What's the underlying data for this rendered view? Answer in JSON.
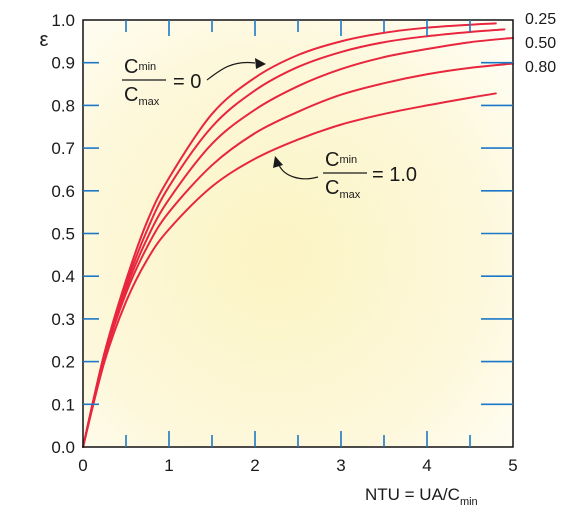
{
  "chart_data": {
    "type": "line",
    "ylabel": "ε",
    "xlabel": {
      "main": "NTU = UA/C",
      "sub": "min"
    },
    "xlim": [
      0,
      5
    ],
    "ylim": [
      0,
      1
    ],
    "x_ticks": [
      "0",
      "1",
      "2",
      "3",
      "4",
      "5"
    ],
    "y_ticks": [
      "0.0",
      "0.1",
      "0.2",
      "0.3",
      "0.4",
      "0.5",
      "0.6",
      "0.7",
      "0.8",
      "0.9",
      "1.0"
    ],
    "grid": false,
    "series": [
      {
        "name": "0",
        "x": [
          0,
          0.25,
          0.5,
          0.75,
          1,
          1.5,
          2,
          2.5,
          3,
          3.5,
          4,
          4.5,
          4.8
        ],
        "y": [
          0,
          0.22,
          0.39,
          0.53,
          0.63,
          0.78,
          0.865,
          0.918,
          0.95,
          0.97,
          0.982,
          0.989,
          0.992
        ]
      },
      {
        "name": "0.25",
        "x": [
          0,
          0.25,
          0.5,
          0.75,
          1,
          1.5,
          2,
          2.5,
          3,
          3.5,
          4,
          4.5,
          4.9
        ],
        "y": [
          0,
          0.22,
          0.38,
          0.51,
          0.61,
          0.75,
          0.835,
          0.89,
          0.925,
          0.948,
          0.962,
          0.972,
          0.978
        ]
      },
      {
        "name": "0.50",
        "x": [
          0,
          0.25,
          0.5,
          0.75,
          1,
          1.5,
          2,
          2.5,
          3,
          3.5,
          4,
          4.5,
          5
        ],
        "y": [
          0,
          0.21,
          0.37,
          0.49,
          0.58,
          0.71,
          0.79,
          0.845,
          0.885,
          0.913,
          0.932,
          0.948,
          0.958
        ]
      },
      {
        "name": "0.80",
        "x": [
          0,
          0.25,
          0.5,
          0.75,
          1,
          1.5,
          2,
          2.5,
          3,
          3.5,
          4,
          4.5,
          5
        ],
        "y": [
          0,
          0.21,
          0.36,
          0.47,
          0.55,
          0.66,
          0.735,
          0.785,
          0.825,
          0.852,
          0.873,
          0.888,
          0.898
        ]
      },
      {
        "name": "1.0",
        "x": [
          0,
          0.25,
          0.5,
          0.75,
          1,
          1.5,
          2,
          2.5,
          3,
          3.5,
          4,
          4.5,
          4.8
        ],
        "y": [
          0,
          0.2,
          0.34,
          0.44,
          0.51,
          0.61,
          0.675,
          0.72,
          0.755,
          0.78,
          0.8,
          0.818,
          0.828
        ]
      }
    ],
    "curve_labels": [
      "0.25",
      "0.50",
      "0.80"
    ],
    "annotations": [
      {
        "numerator": "C",
        "numerator_sub": "min",
        "denominator": "C",
        "denominator_sub": "max",
        "value": "= 0"
      },
      {
        "numerator": "C",
        "numerator_sub": "min",
        "denominator": "C",
        "denominator_sub": "max",
        "value": "= 1.0"
      }
    ],
    "colors": {
      "curve": "#e8263e",
      "axis": "#1b78c8",
      "text": "#1a1a1a",
      "background_center": "#fdf6c8",
      "background_edge": "#fffef2"
    }
  }
}
